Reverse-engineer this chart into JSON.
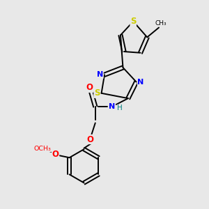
{
  "bg_color": "#e8e8e8",
  "bond_color": "#000000",
  "fig_size": [
    3.0,
    3.0
  ],
  "dpi": 100,
  "atom_colors": {
    "S": "#cccc00",
    "N": "#0000ff",
    "O": "#ff0000",
    "C": "#000000",
    "H": "#008080"
  },
  "font_size": 8.0,
  "bond_lw": 1.4
}
